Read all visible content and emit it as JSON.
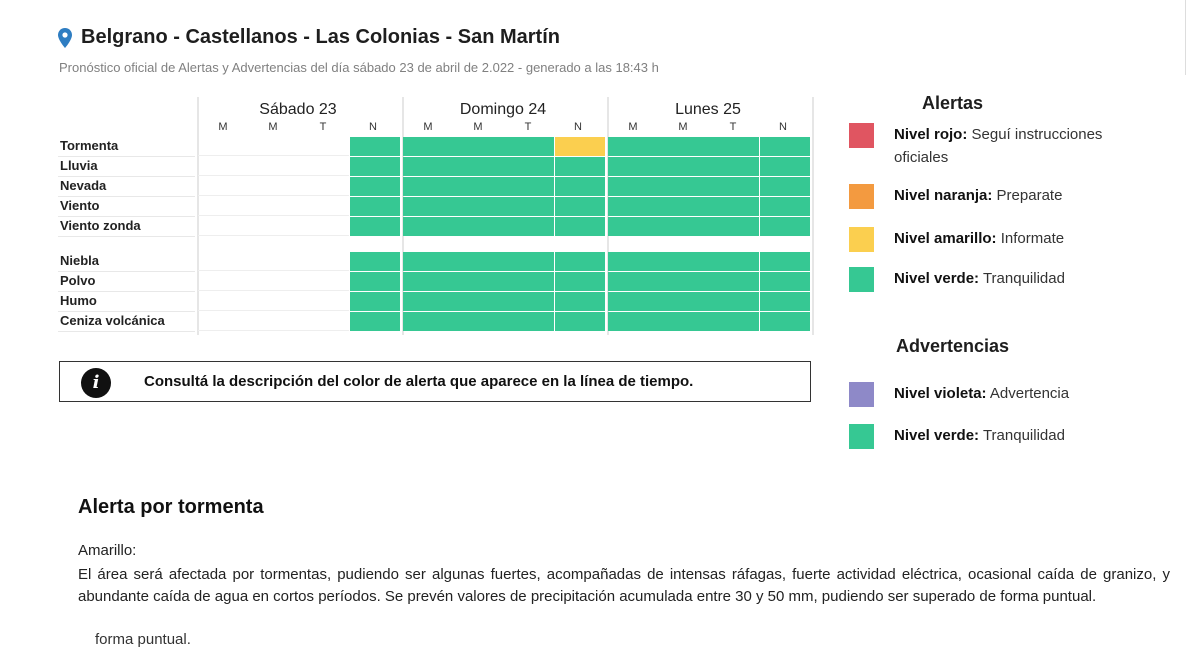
{
  "header": {
    "location": "Belgrano - Castellanos - Las Colonias - San Martín",
    "subtitle": "Pronóstico oficial de Alertas y Advertencias del día sábado 23 de abril de 2.022 - generado a las 18:43 h"
  },
  "colors": {
    "green": "#36c893",
    "yellow": "#fbcf4f",
    "red": "#e05561",
    "orange": "#f39a40",
    "violet": "#8e89c8",
    "pin": "#2e7dc2"
  },
  "timeline": {
    "days": [
      {
        "name": "Sábado 23",
        "periods": [
          "M",
          "M",
          "T",
          "N"
        ]
      },
      {
        "name": "Domingo 24",
        "periods": [
          "M",
          "M",
          "T",
          "N"
        ]
      },
      {
        "name": "Lunes 25",
        "periods": [
          "M",
          "M",
          "T",
          "N"
        ]
      }
    ],
    "rows": [
      {
        "label": "Tormenta",
        "levels": [
          "none",
          "none",
          "none",
          "green",
          "green",
          "green",
          "green",
          "yellow",
          "green",
          "green",
          "green",
          "green"
        ]
      },
      {
        "label": "Lluvia",
        "levels": [
          "none",
          "none",
          "none",
          "green",
          "green",
          "green",
          "green",
          "green",
          "green",
          "green",
          "green",
          "green"
        ]
      },
      {
        "label": "Nevada",
        "levels": [
          "none",
          "none",
          "none",
          "green",
          "green",
          "green",
          "green",
          "green",
          "green",
          "green",
          "green",
          "green"
        ]
      },
      {
        "label": "Viento",
        "levels": [
          "none",
          "none",
          "none",
          "green",
          "green",
          "green",
          "green",
          "green",
          "green",
          "green",
          "green",
          "green"
        ]
      },
      {
        "label": "Viento zonda",
        "levels": [
          "none",
          "none",
          "none",
          "green",
          "green",
          "green",
          "green",
          "green",
          "green",
          "green",
          "green",
          "green"
        ]
      },
      {
        "label": "Niebla",
        "levels": [
          "none",
          "none",
          "none",
          "green",
          "green",
          "green",
          "green",
          "green",
          "green",
          "green",
          "green",
          "green"
        ]
      },
      {
        "label": "Polvo",
        "levels": [
          "none",
          "none",
          "none",
          "green",
          "green",
          "green",
          "green",
          "green",
          "green",
          "green",
          "green",
          "green"
        ]
      },
      {
        "label": "Humo",
        "levels": [
          "none",
          "none",
          "none",
          "green",
          "green",
          "green",
          "green",
          "green",
          "green",
          "green",
          "green",
          "green"
        ]
      },
      {
        "label": "Ceniza volcánica",
        "levels": [
          "none",
          "none",
          "none",
          "green",
          "green",
          "green",
          "green",
          "green",
          "green",
          "green",
          "green",
          "green"
        ]
      }
    ]
  },
  "info": {
    "icon": "i",
    "text": "Consultá la descripción del color de alerta que aparece en la línea de tiempo."
  },
  "legend": {
    "alerts_title": "Alertas",
    "alerts": [
      {
        "level": "red",
        "name": "Nivel rojo:",
        "desc": "Seguí instrucciones oficiales"
      },
      {
        "level": "orange",
        "name": "Nivel naranja:",
        "desc": "Preparate"
      },
      {
        "level": "yellow",
        "name": "Nivel amarillo:",
        "desc": "Informate"
      },
      {
        "level": "green",
        "name": "Nivel verde:",
        "desc": "Tranquilidad"
      }
    ],
    "warnings_title": "Advertencias",
    "warnings": [
      {
        "level": "violet",
        "name": "Nivel violeta:",
        "desc": "Advertencia"
      },
      {
        "level": "green",
        "name": "Nivel verde:",
        "desc": "Tranquilidad"
      }
    ]
  },
  "alert_detail": {
    "title": "Alerta por tormenta",
    "level_label": "Amarillo:",
    "description": "El área será afectada por tormentas, pudiendo ser algunas fuertes, acompañadas de intensas ráfagas, fuerte actividad eléctrica, ocasional caída de granizo, y abundante caída de agua en cortos períodos. Se prevén valores de precipitación acumulada entre 30 y 50 mm, pudiendo ser superado de forma puntual.",
    "overflow_line": "forma puntual."
  }
}
